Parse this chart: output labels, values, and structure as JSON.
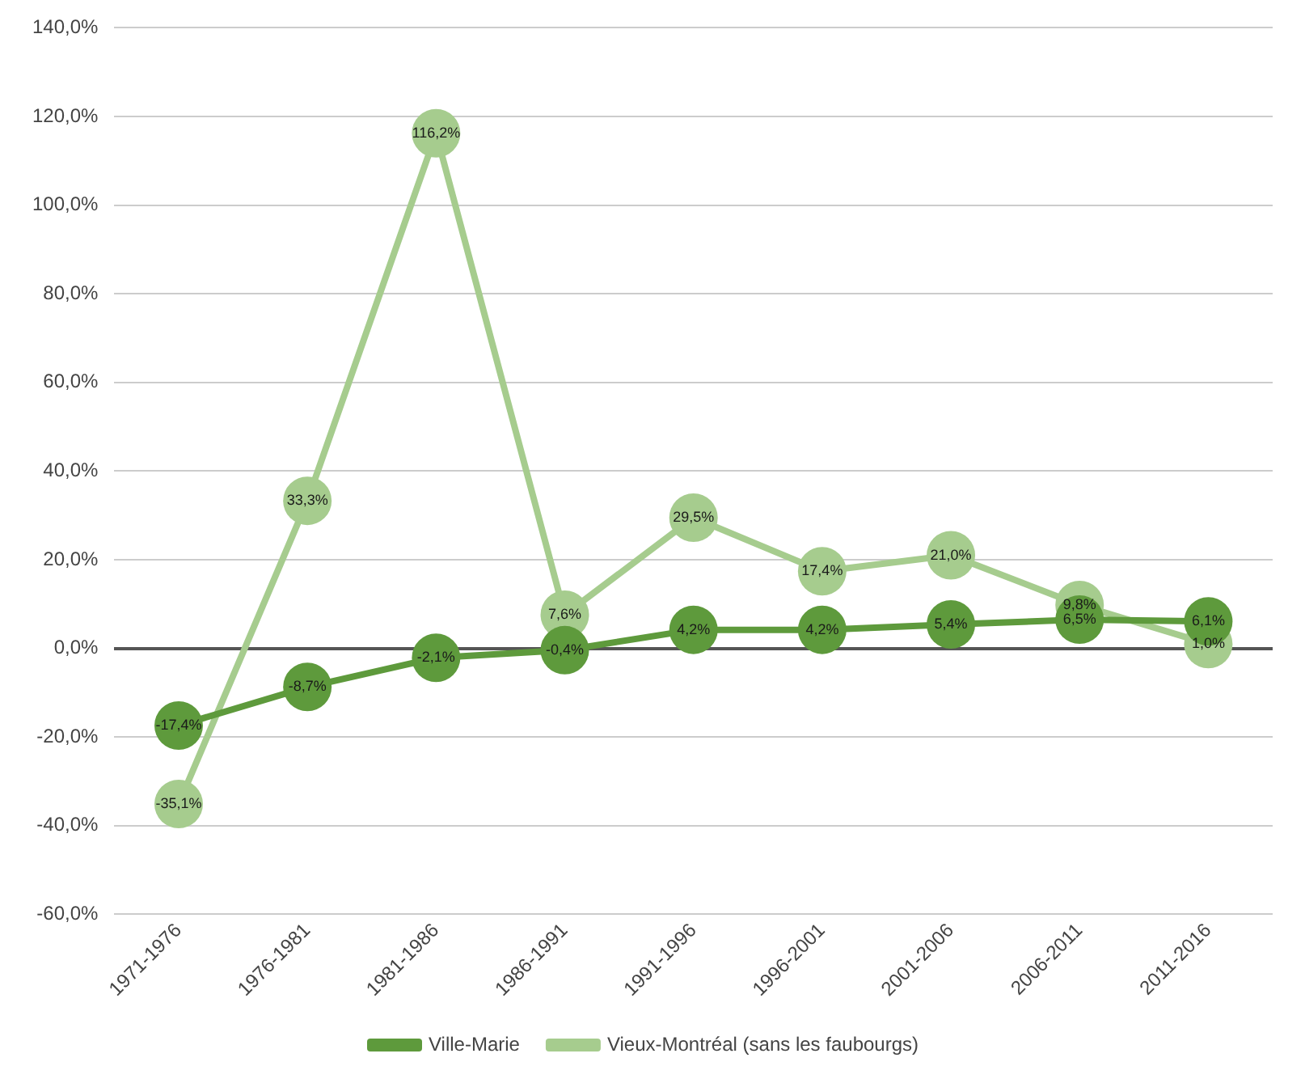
{
  "chart_data": {
    "type": "line",
    "categories": [
      "1971-1976",
      "1976-1981",
      "1981-1986",
      "1986-1991",
      "1991-1996",
      "1996-2001",
      "2001-2006",
      "2006-2011",
      "2011-2016"
    ],
    "series": [
      {
        "name": "Ville-Marie",
        "color": "#5e9a3c",
        "values": [
          -17.4,
          -8.7,
          -2.1,
          -0.4,
          4.2,
          4.2,
          5.4,
          6.5,
          6.1
        ],
        "value_labels": [
          "-17,4%",
          "-8,7%",
          "-2,1%",
          "-0,4%",
          "4,2%",
          "4,2%",
          "5,4%",
          "6,5%",
          "6,1%"
        ]
      },
      {
        "name": "Vieux-Montréal (sans les faubourgs)",
        "color": "#a6cc8e",
        "values": [
          -35.1,
          33.3,
          116.2,
          7.6,
          29.5,
          17.4,
          21.0,
          9.8,
          1.0
        ],
        "value_labels": [
          "-35,1%",
          "33,3%",
          "116,2%",
          "7,6%",
          "29,5%",
          "17,4%",
          "21,0%",
          "9,8%",
          "1,0%"
        ]
      }
    ],
    "ylim": [
      -60,
      140
    ],
    "yticks": [
      {
        "value": -60,
        "label": "-60,0%"
      },
      {
        "value": -40,
        "label": "-40,0%"
      },
      {
        "value": -20,
        "label": "-20,0%"
      },
      {
        "value": 0,
        "label": "0,0%"
      },
      {
        "value": 20,
        "label": "20,0%"
      },
      {
        "value": 40,
        "label": "40,0%"
      },
      {
        "value": 60,
        "label": "60,0%"
      },
      {
        "value": 80,
        "label": "80,0%"
      },
      {
        "value": 100,
        "label": "100,0%"
      },
      {
        "value": 120,
        "label": "120,0%"
      },
      {
        "value": 140,
        "label": "140,0%"
      }
    ],
    "grid": "y",
    "legend": "bottom",
    "marker": "circle",
    "line_style": "solid"
  }
}
